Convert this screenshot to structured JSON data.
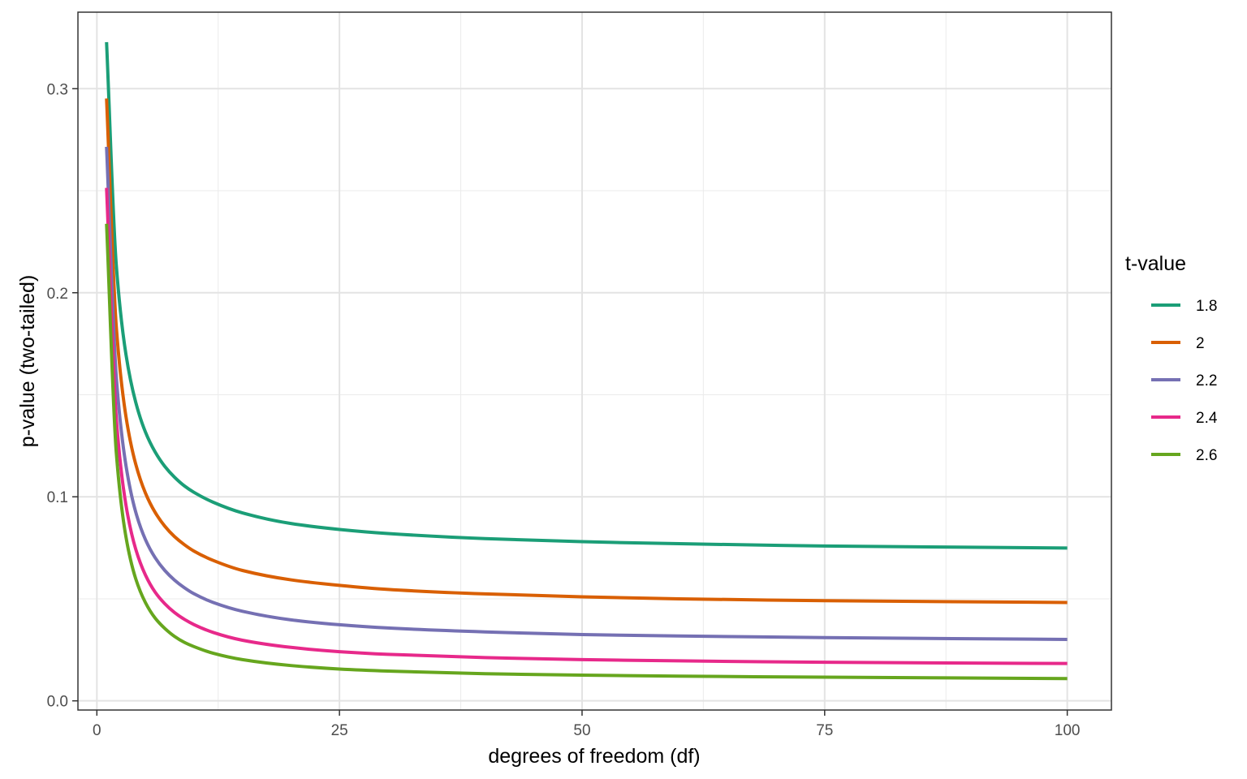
{
  "chart_data": {
    "type": "line",
    "title": "",
    "xlabel": "degrees of freedom (df)",
    "ylabel": "p-value (two-tailed)",
    "xlim": [
      -1.95,
      104.55
    ],
    "ylim": [
      -0.0045,
      0.3375
    ],
    "x_ticks": [
      0,
      25,
      50,
      75,
      100
    ],
    "x_tick_labels": [
      "0",
      "25",
      "50",
      "75",
      "100"
    ],
    "y_ticks": [
      0.0,
      0.1,
      0.2,
      0.3
    ],
    "y_tick_labels": [
      "0.0",
      "0.1",
      "0.2",
      "0.3"
    ],
    "x_minor_ticks": [
      12.5,
      37.5,
      62.5,
      87.5
    ],
    "y_minor_ticks": [
      0.05,
      0.15,
      0.25
    ],
    "grid": true,
    "legend": {
      "title": "t-value",
      "position": "right"
    },
    "x": [
      1,
      2,
      3,
      4,
      5,
      6,
      7,
      8,
      9,
      10,
      12,
      15,
      20,
      25,
      30,
      40,
      50,
      60,
      75,
      100
    ],
    "series": [
      {
        "name": "1.8",
        "color": "#1B9E77",
        "values": [
          0.3228,
          0.2137,
          0.1697,
          0.1464,
          0.1318,
          0.122,
          0.1149,
          0.1096,
          0.1054,
          0.1022,
          0.0973,
          0.0921,
          0.0869,
          0.084,
          0.082,
          0.0795,
          0.078,
          0.077,
          0.0759,
          0.0749
        ]
      },
      {
        "name": "2",
        "color": "#D95F02",
        "values": [
          0.2952,
          0.1835,
          0.1393,
          0.1161,
          0.1019,
          0.0924,
          0.0856,
          0.0805,
          0.0766,
          0.0734,
          0.0688,
          0.0639,
          0.0593,
          0.0566,
          0.0546,
          0.0524,
          0.051,
          0.05,
          0.0491,
          0.0482
        ]
      },
      {
        "name": "2.2",
        "color": "#7570B3",
        "values": [
          0.2715,
          0.1589,
          0.1153,
          0.0926,
          0.0791,
          0.0702,
          0.0639,
          0.0592,
          0.0555,
          0.0525,
          0.0482,
          0.0439,
          0.0397,
          0.0373,
          0.0357,
          0.0338,
          0.0325,
          0.0318,
          0.031,
          0.0301
        ]
      },
      {
        "name": "2.4",
        "color": "#E7298A",
        "values": [
          0.2514,
          0.1386,
          0.0959,
          0.0744,
          0.0617,
          0.0533,
          0.0476,
          0.0433,
          0.04,
          0.0374,
          0.0335,
          0.0297,
          0.0262,
          0.0241,
          0.0228,
          0.0212,
          0.0202,
          0.0196,
          0.0189,
          0.0183
        ]
      },
      {
        "name": "2.6",
        "color": "#66A61E",
        "values": [
          0.2338,
          0.1218,
          0.0803,
          0.0599,
          0.0482,
          0.0406,
          0.0355,
          0.0316,
          0.0287,
          0.0266,
          0.0233,
          0.0202,
          0.0173,
          0.0156,
          0.0146,
          0.0133,
          0.0126,
          0.0121,
          0.0116,
          0.0109
        ]
      }
    ]
  }
}
